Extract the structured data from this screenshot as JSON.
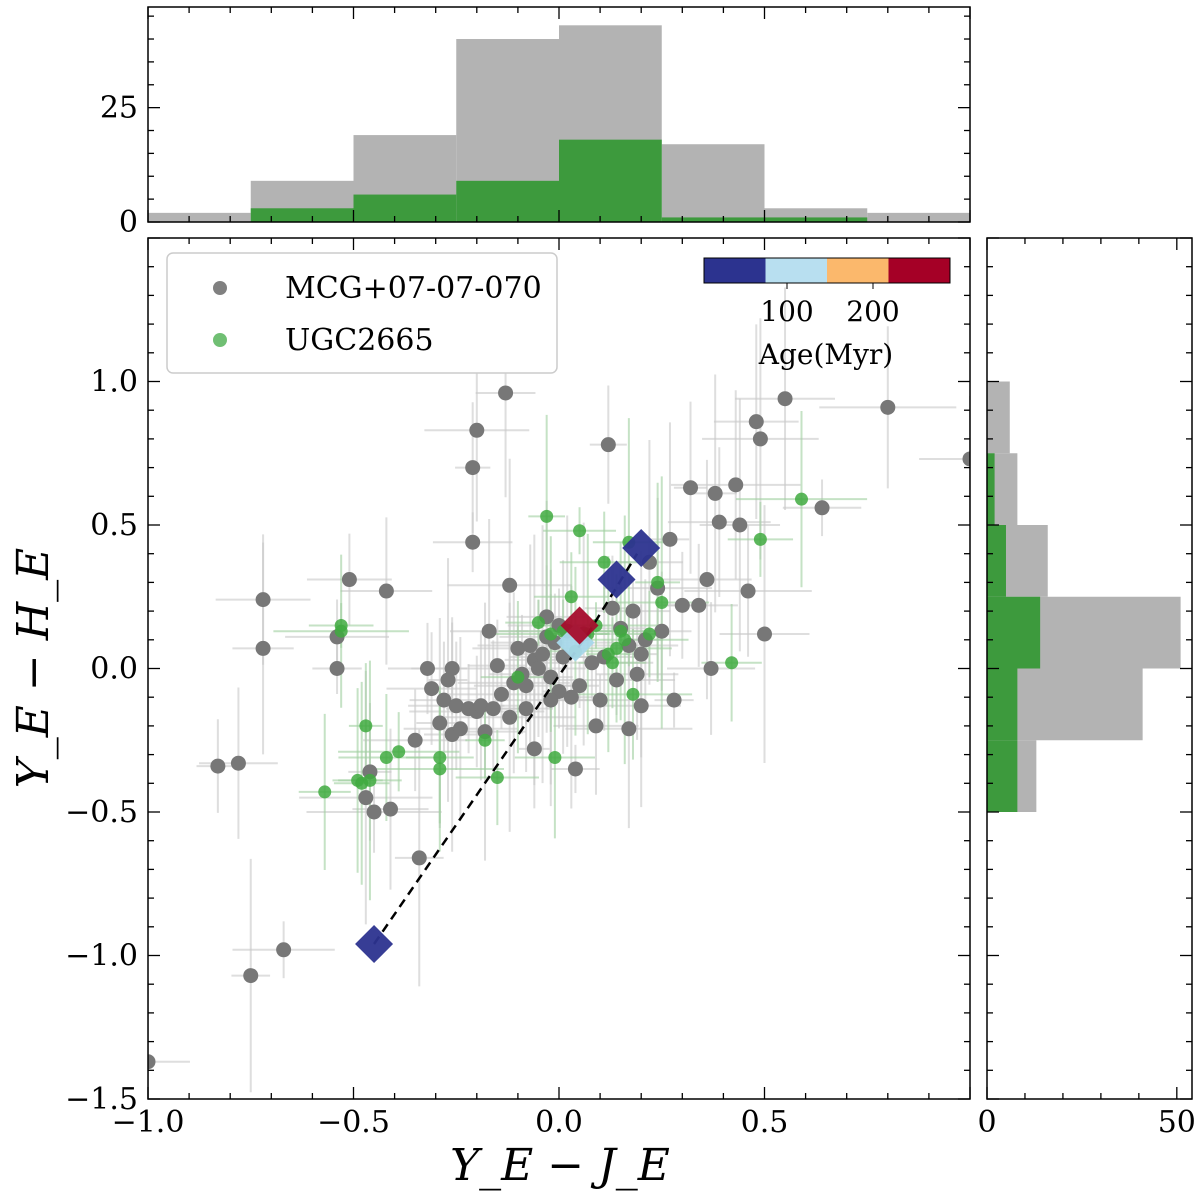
{
  "chart_data": [
    {
      "type": "scatter",
      "panel": "main",
      "xlabel": "Y_E − J_E",
      "ylabel": "Y_E − H_E",
      "xlim": [
        -1.0,
        1.0
      ],
      "ylim": [
        -1.5,
        1.5
      ],
      "xticks": [
        "−1.0",
        "−0.5",
        "0.0",
        "0.5"
      ],
      "yticks": [
        "−1.5",
        "−1.0",
        "−0.5",
        "0.0",
        "0.5",
        "1.0"
      ],
      "legend_position": "top-left",
      "series": [
        {
          "name": "MCG+07-07-070",
          "color": "#808080",
          "points": [
            [
              -1.0,
              -1.37
            ],
            [
              -0.83,
              -0.34
            ],
            [
              -0.78,
              -0.33
            ],
            [
              -0.75,
              -1.07
            ],
            [
              -0.72,
              0.24
            ],
            [
              -0.72,
              0.07
            ],
            [
              -0.67,
              -0.98
            ],
            [
              -0.51,
              0.31
            ],
            [
              -0.54,
              0.11
            ],
            [
              -0.42,
              0.27
            ],
            [
              -0.54,
              0.0
            ],
            [
              -0.47,
              -0.45
            ],
            [
              -0.46,
              -0.36
            ],
            [
              -0.45,
              -0.5
            ],
            [
              -0.41,
              -0.49
            ],
            [
              -0.35,
              -0.25
            ],
            [
              -0.34,
              -0.66
            ],
            [
              -0.32,
              0.0
            ],
            [
              -0.31,
              -0.07
            ],
            [
              -0.29,
              -0.19
            ],
            [
              -0.28,
              -0.11
            ],
            [
              -0.27,
              -0.04
            ],
            [
              -0.26,
              -0.23
            ],
            [
              -0.26,
              0.0
            ],
            [
              -0.25,
              -0.13
            ],
            [
              -0.24,
              -0.21
            ],
            [
              -0.22,
              -0.14
            ],
            [
              -0.21,
              0.44
            ],
            [
              -0.21,
              0.7
            ],
            [
              -0.2,
              0.83
            ],
            [
              -0.2,
              -0.15
            ],
            [
              -0.19,
              -0.13
            ],
            [
              -0.17,
              0.13
            ],
            [
              -0.16,
              -0.14
            ],
            [
              -0.15,
              0.01
            ],
            [
              -0.14,
              -0.09
            ],
            [
              -0.13,
              0.96
            ],
            [
              -0.12,
              0.29
            ],
            [
              -0.12,
              -0.17
            ],
            [
              -0.11,
              -0.05
            ],
            [
              -0.1,
              0.07
            ],
            [
              -0.09,
              -0.02
            ],
            [
              -0.08,
              -0.14
            ],
            [
              -0.07,
              0.08
            ],
            [
              -0.06,
              0.03
            ],
            [
              -0.06,
              -0.28
            ],
            [
              -0.05,
              0.0
            ],
            [
              -0.04,
              0.05
            ],
            [
              -0.03,
              0.18
            ],
            [
              -0.03,
              0.11
            ],
            [
              -0.02,
              -0.03
            ],
            [
              -0.01,
              0.09
            ],
            [
              0.0,
              -0.08
            ],
            [
              0.01,
              0.04
            ],
            [
              0.02,
              0.13
            ],
            [
              0.03,
              -0.1
            ],
            [
              0.04,
              -0.35
            ],
            [
              0.05,
              -0.06
            ],
            [
              0.06,
              0.12
            ],
            [
              0.08,
              0.02
            ],
            [
              0.1,
              -0.11
            ],
            [
              0.11,
              0.04
            ],
            [
              0.12,
              0.78
            ],
            [
              0.13,
              0.21
            ],
            [
              0.14,
              -0.04
            ],
            [
              0.15,
              0.14
            ],
            [
              0.17,
              0.08
            ],
            [
              0.18,
              0.2
            ],
            [
              0.19,
              -0.02
            ],
            [
              0.2,
              0.05
            ],
            [
              0.2,
              -0.13
            ],
            [
              0.22,
              0.37
            ],
            [
              0.24,
              0.28
            ],
            [
              0.25,
              0.13
            ],
            [
              0.27,
              0.45
            ],
            [
              0.28,
              -0.11
            ],
            [
              0.3,
              0.22
            ],
            [
              0.32,
              0.63
            ],
            [
              0.34,
              0.22
            ],
            [
              0.36,
              0.31
            ],
            [
              0.37,
              0.0
            ],
            [
              0.38,
              0.61
            ],
            [
              0.39,
              0.51
            ],
            [
              0.43,
              0.64
            ],
            [
              0.44,
              0.5
            ],
            [
              0.46,
              0.27
            ],
            [
              0.48,
              0.86
            ],
            [
              0.49,
              0.8
            ],
            [
              0.5,
              0.12
            ],
            [
              0.55,
              0.94
            ],
            [
              0.64,
              0.56
            ],
            [
              0.8,
              0.91
            ],
            [
              1.0,
              0.73
            ],
            [
              -0.02,
              -0.11
            ],
            [
              0.09,
              -0.2
            ],
            [
              0.17,
              -0.21
            ],
            [
              0.21,
              0.1
            ],
            [
              -0.18,
              -0.22
            ],
            [
              0.0,
              0.15
            ],
            [
              -0.08,
              -0.06
            ]
          ]
        },
        {
          "name": "UGC2665",
          "color": "#2ca02c",
          "points": [
            [
              -0.57,
              -0.43
            ],
            [
              -0.53,
              0.15
            ],
            [
              -0.53,
              0.13
            ],
            [
              -0.47,
              -0.2
            ],
            [
              -0.49,
              -0.39
            ],
            [
              -0.48,
              -0.4
            ],
            [
              -0.46,
              -0.39
            ],
            [
              -0.42,
              -0.31
            ],
            [
              -0.39,
              -0.29
            ],
            [
              -0.29,
              -0.31
            ],
            [
              -0.29,
              -0.35
            ],
            [
              -0.18,
              -0.25
            ],
            [
              -0.15,
              -0.38
            ],
            [
              -0.1,
              -0.03
            ],
            [
              -0.05,
              0.16
            ],
            [
              -0.03,
              0.53
            ],
            [
              -0.01,
              -0.31
            ],
            [
              0.01,
              0.13
            ],
            [
              0.03,
              0.25
            ],
            [
              0.05,
              0.48
            ],
            [
              0.07,
              0.12
            ],
            [
              0.09,
              0.15
            ],
            [
              0.11,
              0.37
            ],
            [
              0.13,
              0.02
            ],
            [
              0.14,
              0.07
            ],
            [
              0.15,
              0.13
            ],
            [
              0.16,
              0.1
            ],
            [
              0.17,
              0.44
            ],
            [
              0.18,
              -0.09
            ],
            [
              0.22,
              0.12
            ],
            [
              0.24,
              0.3
            ],
            [
              0.25,
              0.23
            ],
            [
              0.42,
              0.02
            ],
            [
              0.49,
              0.45
            ],
            [
              0.59,
              0.59
            ],
            [
              -0.02,
              0.12
            ],
            [
              0.04,
              0.06
            ],
            [
              0.12,
              0.05
            ]
          ]
        }
      ],
      "age_track": {
        "points": [
          [
            -0.45,
            -0.96
          ],
          [
            0.06,
            0.1
          ],
          [
            0.07,
            0.12
          ],
          [
            0.19,
            0.4
          ]
        ],
        "markers": [
          {
            "x": -0.45,
            "y": -0.96,
            "color": "#2c338f"
          },
          {
            "x": 0.14,
            "y": 0.31,
            "color": "#2c338f"
          },
          {
            "x": 0.2,
            "y": 0.42,
            "color": "#2c338f"
          },
          {
            "x": 0.04,
            "y": 0.09,
            "color": "#a8d8ea"
          },
          {
            "x": 0.05,
            "y": 0.15,
            "color": "#a50d2c"
          }
        ]
      },
      "colorbar": {
        "label": "Age(Myr)",
        "ticks": [
          "100",
          "200"
        ],
        "colors": [
          "#2c338f",
          "#b8dff0",
          "#fbb86c",
          "#a50026"
        ]
      }
    },
    {
      "type": "bar",
      "panel": "top-histogram",
      "xlim": [
        -1.0,
        1.0
      ],
      "bin_edges": [
        -1.0,
        -0.75,
        -0.5,
        -0.25,
        0.0,
        0.25,
        0.5,
        0.75,
        1.0
      ],
      "yticks": [
        "0",
        "25"
      ],
      "series": [
        {
          "name": "MCG+07-07-070",
          "color": "#b3b3b3",
          "values": [
            2,
            9,
            19,
            40,
            43,
            17,
            3,
            2
          ]
        },
        {
          "name": "UGC2665",
          "color": "#3d9a3d",
          "values": [
            0,
            3,
            6,
            9,
            18,
            1,
            1,
            0
          ]
        }
      ]
    },
    {
      "type": "bar",
      "panel": "right-histogram",
      "orientation": "horizontal",
      "ylim": [
        -1.5,
        1.5
      ],
      "bin_edges": [
        -0.5,
        -0.25,
        0.0,
        0.25,
        0.5,
        0.75,
        1.0
      ],
      "xticks": [
        "0",
        "50"
      ],
      "series": [
        {
          "name": "MCG+07-07-070",
          "color": "#b3b3b3",
          "values": [
            13,
            41,
            51,
            16,
            8,
            6
          ]
        },
        {
          "name": "UGC2665",
          "color": "#3d9a3d",
          "values": [
            8,
            8,
            14,
            5,
            2,
            0
          ]
        }
      ]
    }
  ],
  "legend": {
    "items": [
      {
        "label": "MCG+07-07-070",
        "color": "#808080"
      },
      {
        "label": "UGC2665",
        "color": "#4caf50"
      }
    ]
  }
}
